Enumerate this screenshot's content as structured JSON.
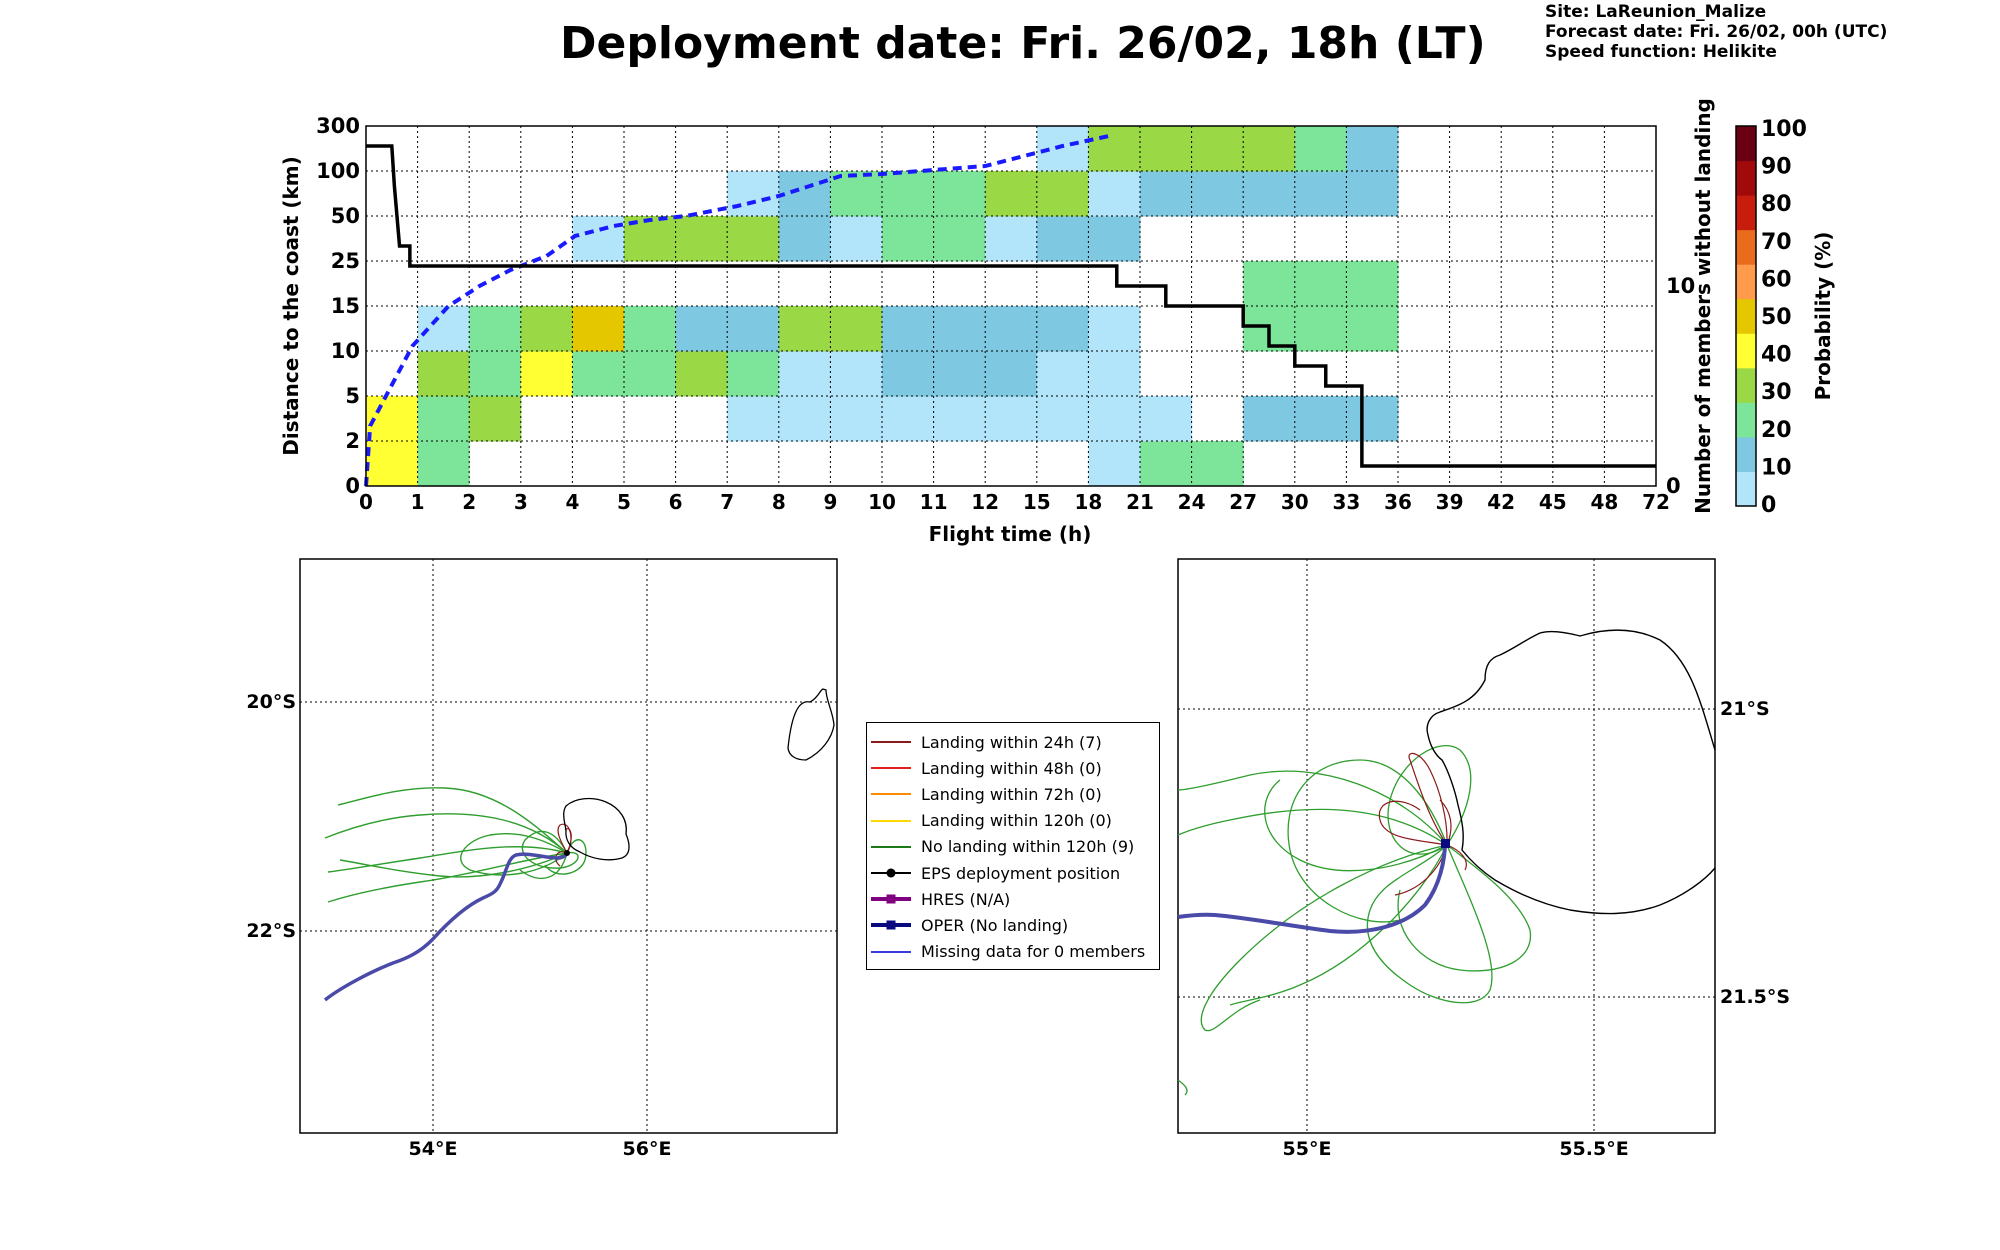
{
  "header": {
    "title": "Deployment date: Fri. 26/02, 18h (LT)",
    "info": [
      "Site: LaReunion_Malize",
      "Forecast date: Fri. 26/02, 00h (UTC)",
      "Speed function: Helikite"
    ]
  },
  "chart_data": [
    {
      "type": "heatmap",
      "xlabel": "Flight time (h)",
      "ylabel": "Distance to the coast (km)",
      "ylabel_right": "Number of members without landing",
      "colorbar_label": "Probability (%)",
      "x_ticks": [
        "0",
        "1",
        "2",
        "3",
        "4",
        "5",
        "6",
        "7",
        "8",
        "9",
        "10",
        "11",
        "12",
        "15",
        "18",
        "21",
        "24",
        "27",
        "30",
        "33",
        "36",
        "39",
        "42",
        "45",
        "48",
        "72"
      ],
      "y_ticks": [
        "0",
        "2",
        "5",
        "10",
        "15",
        "25",
        "50",
        "100",
        "300"
      ],
      "right_ticks": [
        "0",
        "10"
      ],
      "right_ylim": [
        0,
        18
      ],
      "grid": true,
      "colorbar": {
        "ticks": [
          "0",
          "10",
          "20",
          "30",
          "40",
          "50",
          "60",
          "70",
          "80",
          "90",
          "100"
        ],
        "colors": [
          "#b2e4fa",
          "#7ec9e1",
          "#7de599",
          "#9ad846",
          "#ffff33",
          "#e5c700",
          "#ff9b4a",
          "#e86c1c",
          "#c81c0c",
          "#a00a0a",
          "#6b0014"
        ]
      },
      "cells": [
        {
          "x": 0,
          "y": 0,
          "p": 40
        },
        {
          "x": 0,
          "y": 1,
          "p": 40
        },
        {
          "x": 1,
          "y": 0,
          "p": 20
        },
        {
          "x": 1,
          "y": 1,
          "p": 20
        },
        {
          "x": 1,
          "y": 2,
          "p": 30
        },
        {
          "x": 1,
          "y": 3,
          "p": 0
        },
        {
          "x": 2,
          "y": 1,
          "p": 30
        },
        {
          "x": 2,
          "y": 2,
          "p": 20
        },
        {
          "x": 2,
          "y": 3,
          "p": 20
        },
        {
          "x": 3,
          "y": 2,
          "p": 40
        },
        {
          "x": 3,
          "y": 3,
          "p": 30
        },
        {
          "x": 4,
          "y": 2,
          "p": 20
        },
        {
          "x": 4,
          "y": 3,
          "p": 50
        },
        {
          "x": 4,
          "y": 5,
          "p": 0
        },
        {
          "x": 5,
          "y": 2,
          "p": 20
        },
        {
          "x": 5,
          "y": 3,
          "p": 20
        },
        {
          "x": 5,
          "y": 5,
          "p": 30
        },
        {
          "x": 6,
          "y": 2,
          "p": 30
        },
        {
          "x": 6,
          "y": 3,
          "p": 10
        },
        {
          "x": 6,
          "y": 5,
          "p": 30
        },
        {
          "x": 7,
          "y": 1,
          "p": 0
        },
        {
          "x": 7,
          "y": 2,
          "p": 20
        },
        {
          "x": 7,
          "y": 3,
          "p": 10
        },
        {
          "x": 7,
          "y": 5,
          "p": 30
        },
        {
          "x": 7,
          "y": 6,
          "p": 0
        },
        {
          "x": 8,
          "y": 1,
          "p": 0
        },
        {
          "x": 8,
          "y": 2,
          "p": 0
        },
        {
          "x": 8,
          "y": 3,
          "p": 30
        },
        {
          "x": 8,
          "y": 5,
          "p": 10
        },
        {
          "x": 8,
          "y": 6,
          "p": 10
        },
        {
          "x": 9,
          "y": 1,
          "p": 0
        },
        {
          "x": 9,
          "y": 2,
          "p": 0
        },
        {
          "x": 9,
          "y": 3,
          "p": 30
        },
        {
          "x": 9,
          "y": 5,
          "p": 0
        },
        {
          "x": 9,
          "y": 6,
          "p": 20
        },
        {
          "x": 10,
          "y": 1,
          "p": 0
        },
        {
          "x": 10,
          "y": 2,
          "p": 10
        },
        {
          "x": 10,
          "y": 3,
          "p": 10
        },
        {
          "x": 10,
          "y": 5,
          "p": 20
        },
        {
          "x": 10,
          "y": 6,
          "p": 20
        },
        {
          "x": 11,
          "y": 1,
          "p": 0
        },
        {
          "x": 11,
          "y": 2,
          "p": 10
        },
        {
          "x": 11,
          "y": 3,
          "p": 10
        },
        {
          "x": 11,
          "y": 5,
          "p": 20
        },
        {
          "x": 11,
          "y": 6,
          "p": 20
        },
        {
          "x": 12,
          "y": 1,
          "p": 0
        },
        {
          "x": 12,
          "y": 2,
          "p": 10
        },
        {
          "x": 12,
          "y": 3,
          "p": 10
        },
        {
          "x": 12,
          "y": 5,
          "p": 0
        },
        {
          "x": 12,
          "y": 6,
          "p": 30
        },
        {
          "x": 13,
          "y": 1,
          "p": 0
        },
        {
          "x": 13,
          "y": 2,
          "p": 0
        },
        {
          "x": 13,
          "y": 3,
          "p": 10
        },
        {
          "x": 13,
          "y": 5,
          "p": 10
        },
        {
          "x": 13,
          "y": 6,
          "p": 30
        },
        {
          "x": 13,
          "y": 7,
          "p": 0
        },
        {
          "x": 14,
          "y": 0,
          "p": 0
        },
        {
          "x": 14,
          "y": 1,
          "p": 0
        },
        {
          "x": 14,
          "y": 2,
          "p": 0
        },
        {
          "x": 14,
          "y": 3,
          "p": 0
        },
        {
          "x": 14,
          "y": 5,
          "p": 10
        },
        {
          "x": 14,
          "y": 6,
          "p": 0
        },
        {
          "x": 14,
          "y": 7,
          "p": 30
        },
        {
          "x": 15,
          "y": 0,
          "p": 20
        },
        {
          "x": 15,
          "y": 1,
          "p": 0
        },
        {
          "x": 15,
          "y": 6,
          "p": 10
        },
        {
          "x": 15,
          "y": 7,
          "p": 30
        },
        {
          "x": 16,
          "y": 0,
          "p": 20
        },
        {
          "x": 16,
          "y": 6,
          "p": 10
        },
        {
          "x": 16,
          "y": 7,
          "p": 30
        },
        {
          "x": 17,
          "y": 1,
          "p": 10
        },
        {
          "x": 17,
          "y": 3,
          "p": 20
        },
        {
          "x": 17,
          "y": 4,
          "p": 20
        },
        {
          "x": 17,
          "y": 6,
          "p": 10
        },
        {
          "x": 17,
          "y": 7,
          "p": 30
        },
        {
          "x": 18,
          "y": 1,
          "p": 10
        },
        {
          "x": 18,
          "y": 3,
          "p": 20
        },
        {
          "x": 18,
          "y": 4,
          "p": 20
        },
        {
          "x": 18,
          "y": 6,
          "p": 10
        },
        {
          "x": 18,
          "y": 7,
          "p": 20
        },
        {
          "x": 19,
          "y": 1,
          "p": 10
        },
        {
          "x": 19,
          "y": 3,
          "p": 20
        },
        {
          "x": 19,
          "y": 4,
          "p": 20
        },
        {
          "x": 19,
          "y": 6,
          "p": 10
        },
        {
          "x": 19,
          "y": 7,
          "p": 10
        }
      ],
      "members_without_landing": [
        [
          0,
          17
        ],
        [
          0.5,
          17
        ],
        [
          0.55,
          15
        ],
        [
          0.65,
          12
        ],
        [
          0.85,
          12
        ],
        [
          0.85,
          11
        ],
        [
          14.55,
          11
        ],
        [
          14.55,
          10
        ],
        [
          15.5,
          10
        ],
        [
          15.5,
          9
        ],
        [
          17,
          9
        ],
        [
          17,
          8
        ],
        [
          17.5,
          8
        ],
        [
          17.5,
          7
        ],
        [
          18,
          7
        ],
        [
          18,
          6
        ],
        [
          18.6,
          6
        ],
        [
          18.6,
          5
        ],
        [
          19.3,
          5
        ],
        [
          19.3,
          1
        ],
        [
          25,
          1
        ]
      ],
      "cumulative_landing_line": [
        [
          0,
          0
        ],
        [
          0.08,
          3
        ],
        [
          0.9,
          7
        ],
        [
          1.6,
          9
        ],
        [
          2.2,
          10
        ],
        [
          2.8,
          10.8
        ],
        [
          3.5,
          11.5
        ],
        [
          4.05,
          12.5
        ],
        [
          4.8,
          13
        ],
        [
          5.5,
          13.3
        ],
        [
          6.2,
          13.5
        ],
        [
          7.2,
          14
        ],
        [
          8.0,
          14.5
        ],
        [
          8.6,
          15
        ],
        [
          9.2,
          15.5
        ],
        [
          10.0,
          15.6
        ],
        [
          11.0,
          15.8
        ],
        [
          12.0,
          16
        ],
        [
          13.5,
          17
        ],
        [
          14.4,
          17.5
        ]
      ]
    },
    {
      "type": "map",
      "x_ticks": [
        "54°E",
        "56°E"
      ],
      "y_ticks": [
        "20°S",
        "22°S"
      ]
    },
    {
      "type": "map",
      "x_ticks": [
        "55°E",
        "55.5°E"
      ],
      "y_ticks": [
        "21°S",
        "21.5°S"
      ]
    }
  ],
  "legend": [
    {
      "label": "Landing within 24h (7)",
      "color": "#8b1a1a"
    },
    {
      "label": "Landing within 48h (0)",
      "color": "#e02020"
    },
    {
      "label": "Landing within 72h (0)",
      "color": "#ff8c00"
    },
    {
      "label": "Landing within 120h (0)",
      "color": "#ffd700"
    },
    {
      "label": "No landing within 120h (9)",
      "color": "#1a7a1a"
    },
    {
      "label": "EPS deployment position",
      "color": "#000000",
      "marker": "circle"
    },
    {
      "label": "HRES (N/A)",
      "color": "#800080",
      "marker": "square"
    },
    {
      "label": "OPER (No landing)",
      "color": "#0a0a80",
      "marker": "square"
    },
    {
      "label": "Missing data for 0 members",
      "color": "#3a3ae0"
    }
  ]
}
